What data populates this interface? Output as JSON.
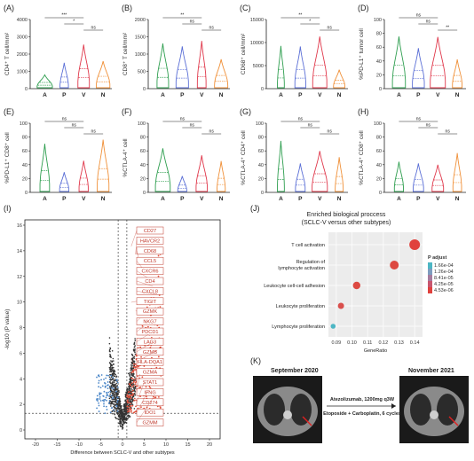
{
  "violin_panels": [
    {
      "label": "(A)",
      "ylabel": "CD4⁺ T cell/mm²",
      "yticks": [
        "0",
        "1000",
        "2000",
        "3000",
        "4000"
      ],
      "ymax": 4000,
      "sig": [
        "***",
        "*",
        "ns"
      ]
    },
    {
      "label": "(B)",
      "ylabel": "CD8⁺ T cell/mm²",
      "yticks": [
        "0",
        "500",
        "1000",
        "1500",
        "2000"
      ],
      "ymax": 2000,
      "sig": [
        "**",
        "ns",
        "ns"
      ]
    },
    {
      "label": "(C)",
      "ylabel": "CD68⁺ cell/mm²",
      "yticks": [
        "0",
        "5000",
        "10000",
        "15000"
      ],
      "ymax": 15000,
      "sig": [
        "**",
        "*",
        "ns"
      ]
    },
    {
      "label": "(D)",
      "ylabel": "%PD-L1⁺ tumor cell",
      "yticks": [
        "0",
        "20",
        "40",
        "60",
        "80",
        "100"
      ],
      "ymax": 100,
      "sig": [
        "ns",
        "ns",
        "**"
      ]
    },
    {
      "label": "(E)",
      "ylabel": "%PD-L1⁺ CD8⁺ cell",
      "yticks": [
        "0",
        "20",
        "40",
        "60",
        "80",
        "100"
      ],
      "ymax": 100,
      "sig": [
        "ns",
        "ns",
        "ns"
      ]
    },
    {
      "label": "(F)",
      "ylabel": "%CTLA-4⁺ cell",
      "yticks": [
        "0",
        "20",
        "40",
        "60",
        "80",
        "100"
      ],
      "ymax": 100,
      "sig": [
        "ns",
        "ns",
        "ns"
      ]
    },
    {
      "label": "(G)",
      "ylabel": "%CTLA-4⁺ CD4⁺ cell",
      "yticks": [
        "0",
        "20",
        "40",
        "60",
        "80",
        "100"
      ],
      "ymax": 100,
      "sig": [
        "ns",
        "ns",
        "ns"
      ]
    },
    {
      "label": "(H)",
      "ylabel": "%CTLA-4⁺ CD8⁺ cell",
      "yticks": [
        "0",
        "20",
        "40",
        "60",
        "80",
        "100"
      ],
      "ymax": 100,
      "sig": [
        "ns",
        "ns",
        "ns"
      ]
    }
  ],
  "groups": [
    "A",
    "P",
    "V",
    "N"
  ],
  "group_colors": [
    "#2e9e4f",
    "#5b6fd6",
    "#e0384b",
    "#f0913a"
  ],
  "volcano": {
    "label": "(I)",
    "xlabel": "Difference between SCLC-V and other subtypes",
    "ylabel": "-log10 (P value)",
    "xticks": [
      "-20",
      "-15",
      "-10",
      "-5",
      "0",
      "5",
      "10",
      "15",
      "20"
    ],
    "yticks": [
      "0",
      "2",
      "4",
      "6",
      "8",
      "10",
      "12",
      "14",
      "16"
    ],
    "genes": [
      "CD27",
      "HAVCR2",
      "CD68",
      "CCL5",
      "CXCR6",
      "CD4",
      "CXCL8",
      "TIGIT",
      "GZMK",
      "NKG7",
      "PDCD1",
      "LAG3",
      "GZMB",
      "HLA-DQA1",
      "GZMA",
      "STAT1",
      "IFNG",
      "CD274",
      "IDO1",
      "GZMM"
    ]
  },
  "enrichment": {
    "label": "(J)",
    "title": "Enriched biological proccess",
    "subtitle": "(SCLC-V versus other subtypes)",
    "xlabel": "GeneRatio",
    "xticks": [
      "0.09",
      "0.10",
      "0.11",
      "0.12",
      "0.13",
      "0.14"
    ],
    "legend_title": "P adjust",
    "legend_values": [
      "1.66e-04",
      "1.26e-04",
      "8.41e-05",
      "4.25e-05",
      "4.53e-06"
    ],
    "legend_colors": [
      "#4db6c4",
      "#7e9cbf",
      "#a57b9e",
      "#c8566f",
      "#e0413d"
    ],
    "terms": [
      {
        "label": "T cell activation",
        "ratio": 0.14,
        "color": "#e0413d",
        "size": 6
      },
      {
        "label": "Regulation of",
        "label2": "lymphocyte activation",
        "ratio": 0.127,
        "color": "#dd4a42",
        "size": 5
      },
      {
        "label": "Leukocyte cell-cell adhesion",
        "ratio": 0.103,
        "color": "#dd4a42",
        "size": 4.2
      },
      {
        "label": "Leukocyte proliferation",
        "ratio": 0.093,
        "color": "#d9504d",
        "size": 3.5
      },
      {
        "label": "Lymphocyte proliferation",
        "ratio": 0.088,
        "color": "#4db6c4",
        "size": 2.8
      }
    ]
  },
  "ct": {
    "label": "(K)",
    "before": "September 2020",
    "after": "November 2021",
    "treatment1": "Atezolizumab, 1200mg q3W",
    "treatment2": "Etoposide + Carboplatin, 6 cycles"
  }
}
